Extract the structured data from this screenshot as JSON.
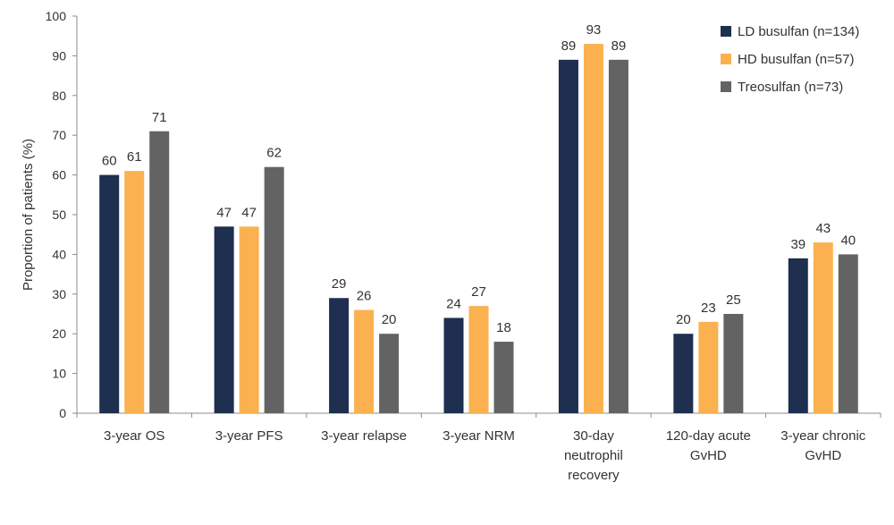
{
  "chart_data": {
    "type": "bar",
    "ylabel": "Proportion of patients (%)",
    "ylim": [
      0,
      100
    ],
    "yticks": [
      0,
      10,
      20,
      30,
      40,
      50,
      60,
      70,
      80,
      90,
      100
    ],
    "categories": [
      [
        "3-year OS"
      ],
      [
        "3-year PFS"
      ],
      [
        "3-year relapse"
      ],
      [
        "3-year NRM"
      ],
      [
        "30-day",
        "neutrophil",
        "recovery"
      ],
      [
        "120-day acute",
        "GvHD"
      ],
      [
        "3-year chronic",
        "GvHD"
      ]
    ],
    "series": [
      {
        "name": "LD busulfan (n=134)",
        "color": "#1e2f4f",
        "values": [
          60,
          47,
          29,
          24,
          89,
          20,
          39
        ]
      },
      {
        "name": "HD busulfan (n=57)",
        "color": "#fbb150",
        "values": [
          61,
          47,
          26,
          27,
          93,
          23,
          43
        ]
      },
      {
        "name": "Treosulfan (n=73)",
        "color": "#636363",
        "values": [
          71,
          62,
          20,
          18,
          89,
          25,
          40
        ]
      }
    ],
    "legend_position": "top-right",
    "grid": false
  }
}
